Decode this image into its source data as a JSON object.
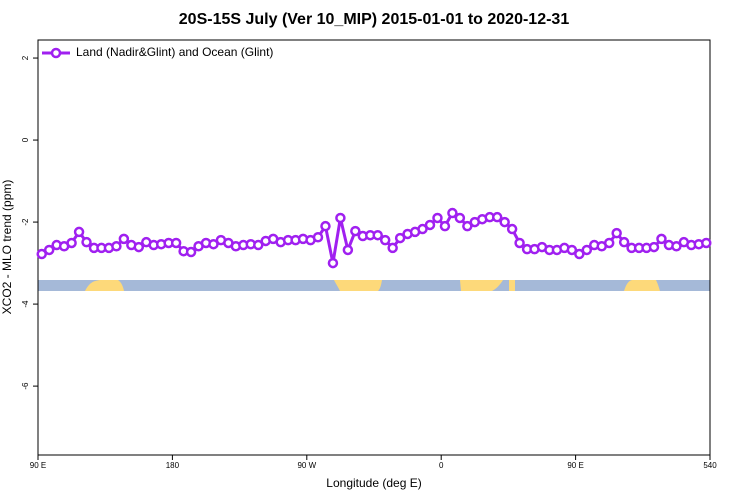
{
  "chart_data": {
    "type": "line",
    "title": "20S-15S July (Ver 10_MIP)   2015-01-01 to 2020-12-31",
    "xlabel": "Longitude (deg E)",
    "ylabel": "XCO2 - MLO trend (ppm)",
    "legend": "top-left",
    "xlim": [
      90,
      540
    ],
    "ylim": [
      -7.68,
      2.44
    ],
    "xticks": [
      {
        "value": 90,
        "label": "90 E"
      },
      180,
      {
        "value": 270,
        "label": "90 W"
      },
      {
        "value": 360,
        "label": "0"
      },
      {
        "value": 450,
        "label": "90 E"
      },
      540
    ],
    "yticks": [
      2,
      0,
      -2,
      -4,
      -6
    ],
    "x": [
      92.5,
      97.5,
      102.5,
      107.5,
      112.5,
      117.5,
      122.5,
      127.5,
      132.5,
      137.5,
      142.5,
      147.5,
      152.5,
      157.5,
      162.5,
      167.5,
      172.5,
      177.5,
      182.5,
      187.5,
      192.5,
      197.5,
      202.5,
      207.5,
      212.5,
      217.5,
      222.5,
      227.5,
      232.5,
      237.5,
      242.5,
      247.5,
      252.5,
      257.5,
      262.5,
      267.5,
      272.5,
      277.5,
      282.5,
      287.5,
      292.5,
      297.5,
      302.5,
      307.5,
      312.5,
      317.5,
      322.5,
      327.5,
      332.5,
      337.5,
      342.5,
      347.5,
      352.5,
      357.5,
      362.5,
      367.5,
      372.5,
      377.5,
      382.5,
      387.5,
      392.5,
      397.5,
      402.5,
      407.5,
      412.5,
      417.5,
      422.5,
      427.5,
      432.5,
      437.5,
      442.5,
      447.5,
      452.5,
      457.5,
      462.5,
      467.5,
      472.5,
      477.5,
      482.5,
      487.5,
      492.5,
      497.5,
      502.5,
      507.5,
      512.5,
      517.5,
      522.5,
      527.5,
      532.5,
      537.5
    ],
    "series": [
      {
        "name": "Land (Nadir&Glint) and Ocean (Glint)",
        "color": "#a020f0",
        "values": [
          -2.78,
          -2.68,
          -2.56,
          -2.59,
          -2.51,
          -2.24,
          -2.49,
          -2.63,
          -2.63,
          -2.63,
          -2.59,
          -2.41,
          -2.56,
          -2.61,
          -2.49,
          -2.56,
          -2.54,
          -2.51,
          -2.51,
          -2.71,
          -2.73,
          -2.59,
          -2.51,
          -2.54,
          -2.44,
          -2.51,
          -2.59,
          -2.56,
          -2.54,
          -2.56,
          -2.46,
          -2.41,
          -2.49,
          -2.44,
          -2.44,
          -2.41,
          -2.44,
          -2.37,
          -2.1,
          -3.0,
          -1.9,
          -2.68,
          -2.22,
          -2.34,
          -2.32,
          -2.32,
          -2.44,
          -2.63,
          -2.39,
          -2.29,
          -2.24,
          -2.17,
          -2.07,
          -1.9,
          -2.1,
          -1.78,
          -1.9,
          -2.1,
          -2.0,
          -1.93,
          -1.88,
          -1.88,
          -2.0,
          -2.17,
          -2.51,
          -2.66,
          -2.66,
          -2.61,
          -2.68,
          -2.68,
          -2.63,
          -2.68,
          -2.78,
          -2.68,
          -2.56,
          -2.59,
          -2.51,
          -2.27,
          -2.49,
          -2.63,
          -2.63,
          -2.63,
          -2.61,
          -2.41,
          -2.56,
          -2.59,
          -2.49,
          -2.56,
          -2.54,
          -2.51
        ]
      }
    ]
  }
}
